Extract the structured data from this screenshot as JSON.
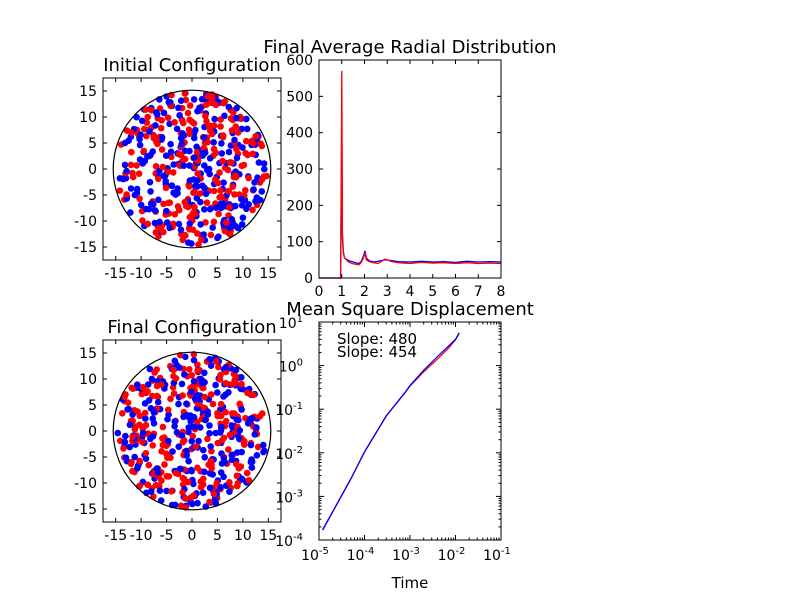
{
  "figure": {
    "background": "#ffffff",
    "particle_colors": {
      "red": "#ff0000",
      "blue": "#0000ff"
    }
  },
  "chart_data": [
    {
      "id": "initial",
      "type": "scatter",
      "title": "Initial Configuration",
      "xlim": [
        -17.5,
        17.5
      ],
      "ylim": [
        -17.5,
        17.5
      ],
      "xticks": [
        -15,
        -10,
        -5,
        0,
        5,
        10,
        15
      ],
      "yticks": [
        -15,
        -10,
        -5,
        0,
        5,
        10,
        15
      ],
      "boundary_radius": 15.5,
      "seed": 12345,
      "red_count": 240,
      "blue_count": 240,
      "series": [
        {
          "color": "#ff0000",
          "values": []
        },
        {
          "color": "#0000ff",
          "values": []
        }
      ]
    },
    {
      "id": "radial",
      "type": "line",
      "title": "Final Average Radial Distribution",
      "xlim": [
        0,
        8
      ],
      "ylim": [
        0,
        600
      ],
      "xticks": [
        0,
        1,
        2,
        3,
        4,
        5,
        6,
        7,
        8
      ],
      "yticks": [
        0,
        100,
        200,
        300,
        400,
        500,
        600
      ],
      "series": [
        {
          "color": "#0000ff",
          "x": [
            0,
            0.95,
            1.0,
            1.03,
            1.07,
            1.12,
            1.2,
            1.3,
            1.45,
            1.6,
            1.75,
            1.85,
            1.95,
            2.02,
            2.08,
            2.2,
            2.4,
            2.6,
            2.9,
            3.2,
            3.5,
            4,
            4.5,
            5,
            5.5,
            6,
            6.5,
            7,
            7.5,
            8
          ],
          "y": [
            0,
            0,
            410,
            110,
            70,
            55,
            52,
            48,
            45,
            42,
            40,
            45,
            60,
            75,
            55,
            48,
            44,
            46,
            50,
            48,
            45,
            44,
            46,
            44,
            45,
            43,
            46,
            44,
            45,
            44
          ]
        },
        {
          "color": "#ff0000",
          "x": [
            0,
            0.95,
            1.0,
            1.03,
            1.07,
            1.12,
            1.2,
            1.3,
            1.45,
            1.6,
            1.75,
            1.85,
            1.95,
            2.02,
            2.08,
            2.2,
            2.4,
            2.6,
            2.9,
            3.2,
            3.5,
            4,
            4.5,
            5,
            5.5,
            6,
            6.5,
            7,
            7.5,
            8
          ],
          "y": [
            0,
            0,
            570,
            130,
            75,
            55,
            50,
            44,
            40,
            38,
            36,
            42,
            55,
            68,
            50,
            45,
            42,
            40,
            52,
            45,
            42,
            40,
            43,
            41,
            42,
            40,
            42,
            40,
            41,
            40
          ]
        }
      ]
    },
    {
      "id": "final",
      "type": "scatter",
      "title": "Final Configuration",
      "xlim": [
        -17.5,
        17.5
      ],
      "ylim": [
        -17.5,
        17.5
      ],
      "xticks": [
        -15,
        -10,
        -5,
        0,
        5,
        10,
        15
      ],
      "yticks": [
        -15,
        -10,
        -5,
        0,
        5,
        10,
        15
      ],
      "boundary_radius": 15.5,
      "seed": 98765,
      "red_count": 240,
      "blue_count": 240,
      "series": [
        {
          "color": "#ff0000",
          "values": []
        },
        {
          "color": "#0000ff",
          "values": []
        }
      ]
    },
    {
      "id": "msd",
      "type": "line",
      "title": "Mean Square Displacement",
      "xlabel": "Time",
      "xscale": "log",
      "yscale": "log",
      "xlim_exp": [
        -5,
        -1
      ],
      "ylim_exp": [
        -4,
        1
      ],
      "xtick_labels": [
        "10-5",
        "10-4",
        "10-3",
        "10-2",
        "10-1"
      ],
      "ytick_labels": [
        "10-4",
        "10-3",
        "10-2",
        "10-1",
        "100",
        "101"
      ],
      "annotations": [
        "Slope: 480",
        "Slope: 454"
      ],
      "series": [
        {
          "color": "#ff0000",
          "x": [
            1.2e-05,
            5e-05,
            0.0001,
            0.0003,
            0.0008,
            0.001,
            0.002,
            0.004,
            0.007,
            0.01,
            0.012
          ],
          "y": [
            0.00017,
            0.0025,
            0.0105,
            0.07,
            0.25,
            0.34,
            0.72,
            1.4,
            2.5,
            3.9,
            5.7
          ]
        },
        {
          "color": "#0000ff",
          "x": [
            1.2e-05,
            5e-05,
            0.0001,
            0.0003,
            0.0008,
            0.001,
            0.002,
            0.004,
            0.007,
            0.01,
            0.012
          ],
          "y": [
            0.00017,
            0.0025,
            0.0105,
            0.07,
            0.25,
            0.35,
            0.78,
            1.6,
            2.8,
            4.0,
            5.4
          ]
        }
      ]
    }
  ]
}
